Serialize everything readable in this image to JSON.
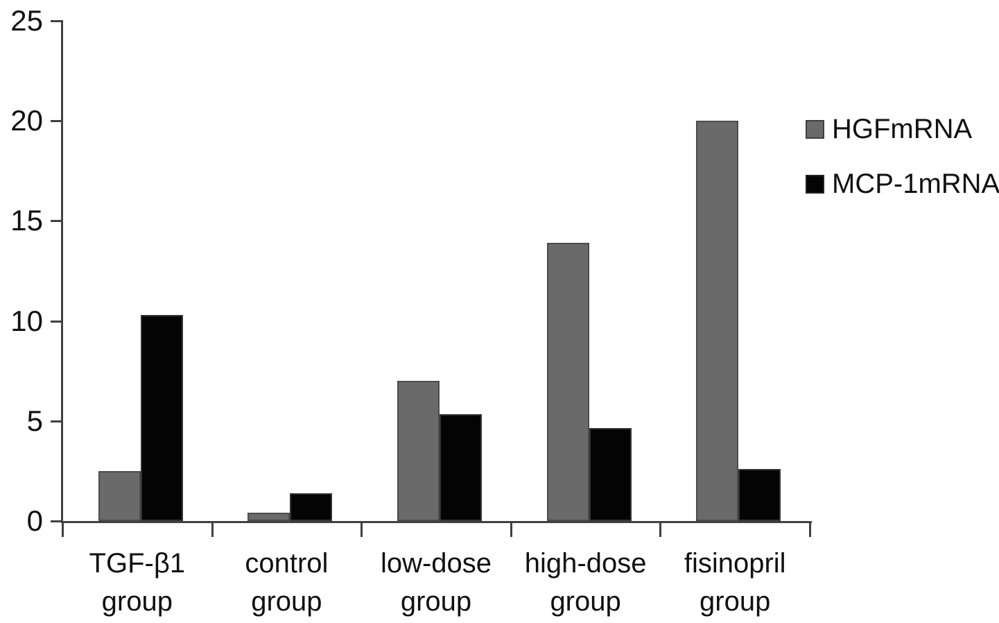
{
  "chart_data": {
    "type": "bar",
    "title": "",
    "xlabel": "",
    "ylabel": "",
    "categories": [
      "TGF-β1 group",
      "control group",
      "low-dose group",
      "high-dose group",
      "fisinopril group"
    ],
    "category_lines": [
      [
        "TGF-β1",
        "group"
      ],
      [
        "control",
        "group"
      ],
      [
        "low-dose",
        "group"
      ],
      [
        "high-dose",
        "group"
      ],
      [
        "fisinopril",
        "group"
      ]
    ],
    "series": [
      {
        "name": "HGFmRNA",
        "color": "#6a6a6a",
        "border": "#4c4c4c",
        "values": [
          2.5,
          0.4,
          7.0,
          13.9,
          20.0
        ]
      },
      {
        "name": "MCP-1mRNA",
        "color": "#040404",
        "border": "#343434",
        "values": [
          10.3,
          1.4,
          5.35,
          4.65,
          2.6
        ]
      }
    ],
    "ylim": [
      0,
      25
    ],
    "yticks": [
      0,
      5,
      10,
      15,
      20,
      25
    ],
    "ytick_labels": [
      "0",
      "5",
      "10",
      "15",
      "20",
      "25"
    ],
    "grid": false,
    "legend_position": "upper-right"
  },
  "colors": {
    "axis": "#404040",
    "text": "#111111",
    "background": "#ffffff"
  }
}
